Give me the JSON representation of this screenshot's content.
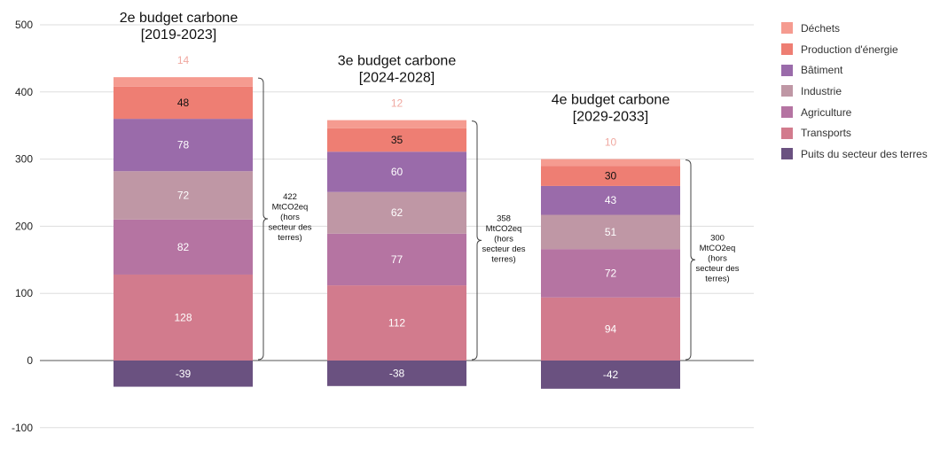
{
  "chart_data": {
    "type": "bar",
    "stacked": true,
    "categories": [
      "2e budget carbone\n[2019-2023]",
      "3e budget carbone\n[2024-2028]",
      "4e budget carbone\n[2029-2033]"
    ],
    "series": [
      {
        "name": "Puits du secteur des terres",
        "color": "#6a5180",
        "values": [
          -39,
          -38,
          -42
        ]
      },
      {
        "name": "Transports",
        "color": "#d27b8d",
        "values": [
          128,
          112,
          94
        ]
      },
      {
        "name": "Agriculture",
        "color": "#b574a2",
        "values": [
          82,
          77,
          72
        ]
      },
      {
        "name": "Industrie",
        "color": "#bf97a5",
        "values": [
          72,
          62,
          51
        ]
      },
      {
        "name": "Bâtiment",
        "color": "#9a6baa",
        "values": [
          78,
          60,
          43
        ]
      },
      {
        "name": "Production d'énergie",
        "color": "#ee7e73",
        "values": [
          48,
          35,
          30
        ]
      },
      {
        "name": "Déchets",
        "color": "#f59b90",
        "values": [
          14,
          12,
          10
        ]
      }
    ],
    "totals": [
      "422\nMtCO2eq\n(hors\nsecteur des\nterres)",
      "358\nMtCO2eq\n(hors\nsecteur des\nterres)",
      "300\nMtCO2eq\n(hors\nsecteur des\nterres)"
    ],
    "ylim": [
      -100,
      500
    ],
    "yticks": [
      -100,
      0,
      100,
      200,
      300,
      400,
      500
    ],
    "grid": true,
    "legend": "right"
  }
}
